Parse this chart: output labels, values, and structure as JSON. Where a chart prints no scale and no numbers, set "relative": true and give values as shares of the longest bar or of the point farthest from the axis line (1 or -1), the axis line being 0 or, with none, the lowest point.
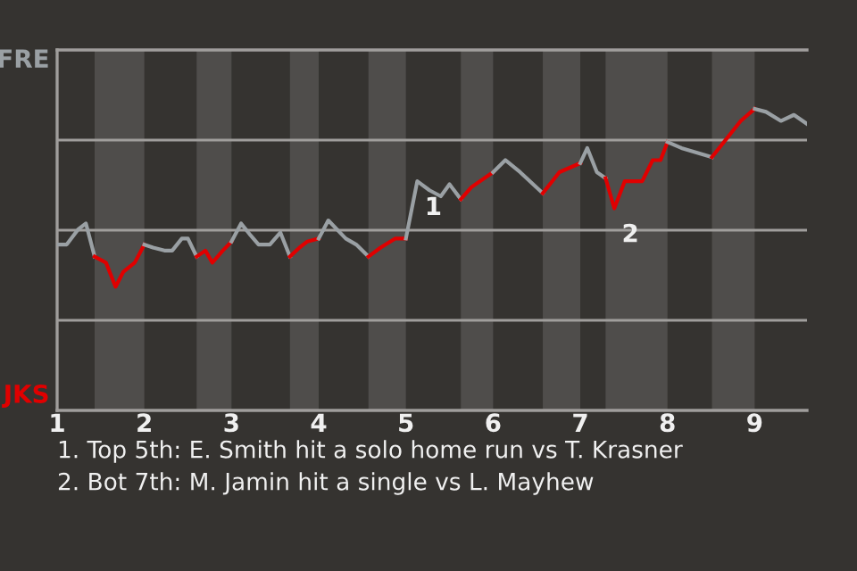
{
  "chart_data": {
    "type": "line",
    "relative": true,
    "grid": "y",
    "xlim": [
      1,
      9.6
    ],
    "xticks": [
      1,
      2,
      3,
      4,
      5,
      6,
      7,
      8,
      9
    ],
    "series": [
      {
        "name": "FRE",
        "color": "#9aa0a4",
        "x": [
          1.0,
          1.11,
          1.24,
          1.33,
          1.43
        ],
        "values": [
          0.55,
          0.55,
          0.6,
          0.62,
          0.51
        ]
      },
      {
        "name": "JKS",
        "color": "#e00000",
        "x": [
          1.43,
          1.56,
          1.67,
          1.76,
          1.89,
          2.0
        ],
        "values": [
          0.51,
          0.49,
          0.41,
          0.46,
          0.49,
          0.55
        ]
      },
      {
        "color": "#9aa0a4",
        "x": [
          2.0,
          2.1,
          2.23,
          2.32,
          2.43,
          2.5,
          2.6
        ],
        "values": [
          0.55,
          0.54,
          0.53,
          0.53,
          0.57,
          0.57,
          0.51
        ]
      },
      {
        "color": "#e00000",
        "x": [
          2.6,
          2.7,
          2.78,
          2.9,
          3.0
        ],
        "values": [
          0.51,
          0.53,
          0.49,
          0.53,
          0.56
        ]
      },
      {
        "color": "#9aa0a4",
        "x": [
          3.0,
          3.11,
          3.22,
          3.31,
          3.44,
          3.56,
          3.67
        ],
        "values": [
          0.56,
          0.62,
          0.58,
          0.55,
          0.55,
          0.59,
          0.51
        ]
      },
      {
        "color": "#e00000",
        "x": [
          3.67,
          3.78,
          3.87,
          4.0
        ],
        "values": [
          0.51,
          0.54,
          0.56,
          0.57
        ]
      },
      {
        "color": "#9aa0a4",
        "x": [
          4.0,
          4.11,
          4.31,
          4.43,
          4.57
        ],
        "values": [
          0.57,
          0.63,
          0.57,
          0.55,
          0.51
        ]
      },
      {
        "color": "#e00000",
        "x": [
          4.57,
          4.71,
          4.88,
          5.0
        ],
        "values": [
          0.51,
          0.54,
          0.57,
          0.57
        ]
      },
      {
        "color": "#9aa0a4",
        "x": [
          5.0,
          5.13,
          5.27,
          5.4,
          5.5,
          5.63
        ],
        "values": [
          0.57,
          0.76,
          0.73,
          0.71,
          0.75,
          0.7
        ]
      },
      {
        "color": "#e00000",
        "x": [
          5.63,
          5.75,
          6.0
        ],
        "values": [
          0.7,
          0.74,
          0.79
        ]
      },
      {
        "color": "#9aa0a4",
        "x": [
          6.0,
          6.14,
          6.31,
          6.57
        ],
        "values": [
          0.79,
          0.83,
          0.79,
          0.72
        ]
      },
      {
        "color": "#e00000",
        "x": [
          6.57,
          6.76,
          7.0
        ],
        "values": [
          0.72,
          0.79,
          0.82
        ]
      },
      {
        "color": "#9aa0a4",
        "x": [
          7.0,
          7.08,
          7.19,
          7.29
        ],
        "values": [
          0.82,
          0.87,
          0.79,
          0.77
        ]
      },
      {
        "color": "#e00000",
        "x": [
          7.29,
          7.39,
          7.51,
          7.71,
          7.83,
          7.92,
          8.0
        ],
        "values": [
          0.77,
          0.67,
          0.76,
          0.76,
          0.83,
          0.83,
          0.89
        ]
      },
      {
        "color": "#9aa0a4",
        "x": [
          8.0,
          8.16,
          8.51
        ],
        "values": [
          0.89,
          0.87,
          0.84
        ]
      },
      {
        "color": "#e00000",
        "x": [
          8.51,
          8.84,
          9.0
        ],
        "values": [
          0.84,
          0.96,
          1.0
        ]
      },
      {
        "color": "#9aa0a4",
        "x": [
          9.0,
          9.13,
          9.3,
          9.45,
          9.6
        ],
        "values": [
          1.0,
          0.99,
          0.96,
          0.98,
          0.95
        ]
      }
    ],
    "bands": [
      {
        "axis": "x",
        "from": 1.43,
        "to": 2,
        "color": "#4f4d4b"
      },
      {
        "axis": "x",
        "from": 2.6,
        "to": 3,
        "color": "#4f4d4b"
      },
      {
        "axis": "x",
        "from": 3.67,
        "to": 4,
        "color": "#4f4d4b"
      },
      {
        "axis": "x",
        "from": 4.57,
        "to": 5,
        "color": "#4f4d4b"
      },
      {
        "axis": "x",
        "from": 5.63,
        "to": 6,
        "color": "#4f4d4b"
      },
      {
        "axis": "x",
        "from": 6.57,
        "to": 7,
        "color": "#4f4d4b"
      },
      {
        "axis": "x",
        "from": 7.29,
        "to": 8,
        "color": "#4f4d4b"
      },
      {
        "axis": "x",
        "from": 8.51,
        "to": 9,
        "color": "#4f4d4b"
      }
    ],
    "annotations": [
      {
        "text": "1",
        "x": 5.13,
        "y": 0.76
      },
      {
        "text": "2",
        "x": 7.39,
        "y": 0.67
      },
      "1. Top 5th: E. Smith hit a solo home run vs T. Krasner",
      "2. Bot 7th: M. Jamin hit a single vs L. Mayhew"
    ]
  }
}
